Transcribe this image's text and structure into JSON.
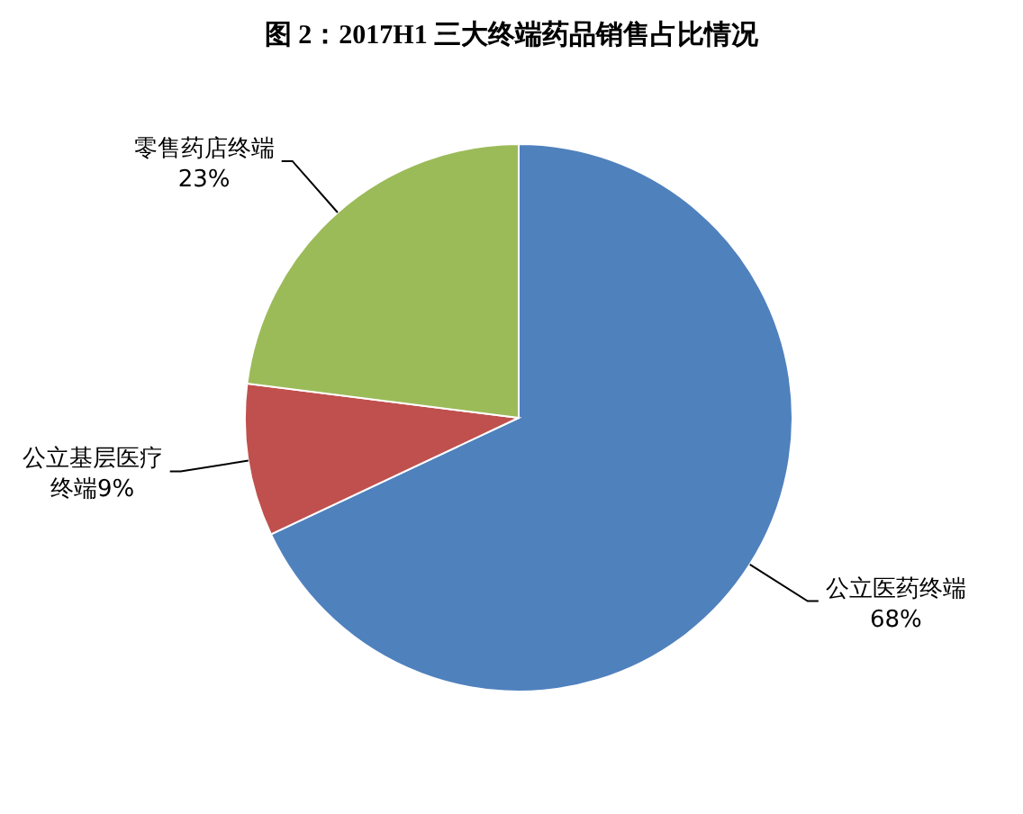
{
  "chart_data": {
    "type": "pie",
    "title": "图 2：2017H1 三大终端药品销售占比情况",
    "categories": [
      "公立医药终端",
      "公立基层医疗终端",
      "零售药店终端"
    ],
    "values": [
      68,
      9,
      23
    ],
    "value_labels": [
      "68%",
      "9%",
      "23%"
    ],
    "colors": [
      "#4f81bd",
      "#c0504d",
      "#9bbb59"
    ]
  }
}
